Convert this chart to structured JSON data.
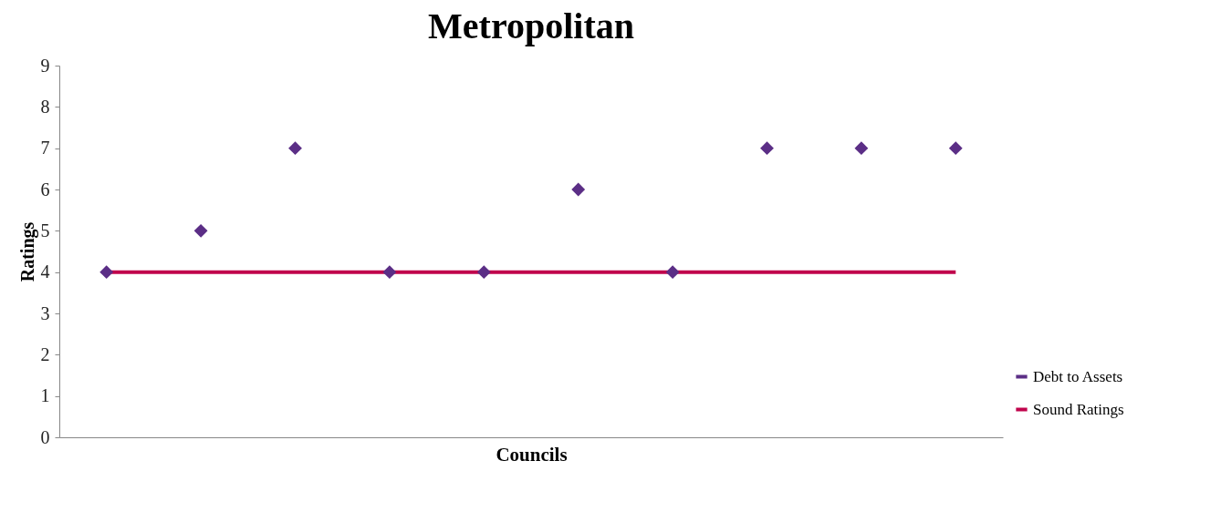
{
  "chart_data": {
    "type": "scatter",
    "title": "Metropolitan",
    "xlabel": "Councils",
    "ylabel": "Ratings",
    "categories": [
      null,
      null,
      null,
      null,
      null,
      null,
      null,
      null,
      null,
      null
    ],
    "ylim": [
      0,
      9
    ],
    "yticks": [
      0,
      1,
      2,
      3,
      4,
      5,
      6,
      7,
      8,
      9
    ],
    "grid": false,
    "legend": "bottom right",
    "marker": "diamond",
    "series": [
      {
        "name": "Debt to Assets",
        "color": "#5b2e86",
        "values": [
          4,
          5,
          7,
          4,
          4,
          6,
          4,
          7,
          7,
          7
        ]
      }
    ],
    "ref_lines": [
      {
        "axis": "y",
        "value": 4,
        "label": "Sound Ratings",
        "color": "#c0044c",
        "line_style": "solid"
      }
    ]
  }
}
